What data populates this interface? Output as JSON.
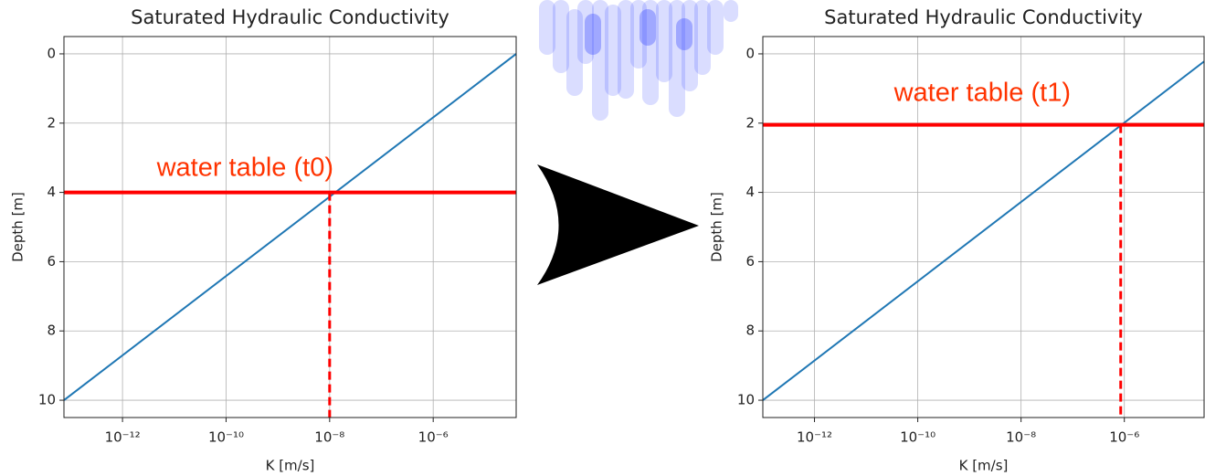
{
  "chart_data": [
    {
      "type": "line",
      "title": "Saturated Hydraulic Conductivity",
      "xlabel": "K [m/s]",
      "ylabel": "Depth [m]",
      "xscale": "log",
      "xlim": [
        7.4e-14,
        4e-05
      ],
      "ylim": [
        -0.5,
        10.5
      ],
      "y_inverted": true,
      "grid": true,
      "xticks": [
        {
          "value": 1e-12,
          "label": "10⁻¹²"
        },
        {
          "value": 1e-10,
          "label": "10⁻¹⁰"
        },
        {
          "value": 1e-08,
          "label": "10⁻⁸"
        },
        {
          "value": 1e-06,
          "label": "10⁻⁶"
        }
      ],
      "yticks": [
        0,
        2,
        4,
        6,
        8,
        10
      ],
      "series": [
        {
          "color": "#1f77b4",
          "x": [
            7.4e-14,
            4e-05
          ],
          "values": [
            10,
            0
          ]
        }
      ],
      "water_table": {
        "depth": 4,
        "K": 1e-08,
        "label": "water table (t0)",
        "color": "#ff0000",
        "label_color": "#ff3300"
      }
    },
    {
      "type": "line",
      "title": "Saturated Hydraulic Conductivity",
      "xlabel": "K [m/s]",
      "ylabel": "Depth [m]",
      "xscale": "log",
      "xlim": [
        1e-13,
        3.5e-05
      ],
      "ylim": [
        -0.5,
        10.5
      ],
      "y_inverted": true,
      "grid": true,
      "xticks": [
        {
          "value": 1e-12,
          "label": "10⁻¹²"
        },
        {
          "value": 1e-10,
          "label": "10⁻¹⁰"
        },
        {
          "value": 1e-08,
          "label": "10⁻⁸"
        },
        {
          "value": 1e-06,
          "label": "10⁻⁶"
        }
      ],
      "yticks": [
        0,
        2,
        4,
        6,
        8,
        10
      ],
      "series": [
        {
          "color": "#1f77b4",
          "x": [
            1e-13,
            3.5e-05
          ],
          "values": [
            10,
            0.22
          ]
        }
      ],
      "water_table": {
        "depth": 2.05,
        "K": 8.5e-07,
        "label": "water table (t1)",
        "color": "#ff0000",
        "label_color": "#ff3300"
      }
    }
  ]
}
